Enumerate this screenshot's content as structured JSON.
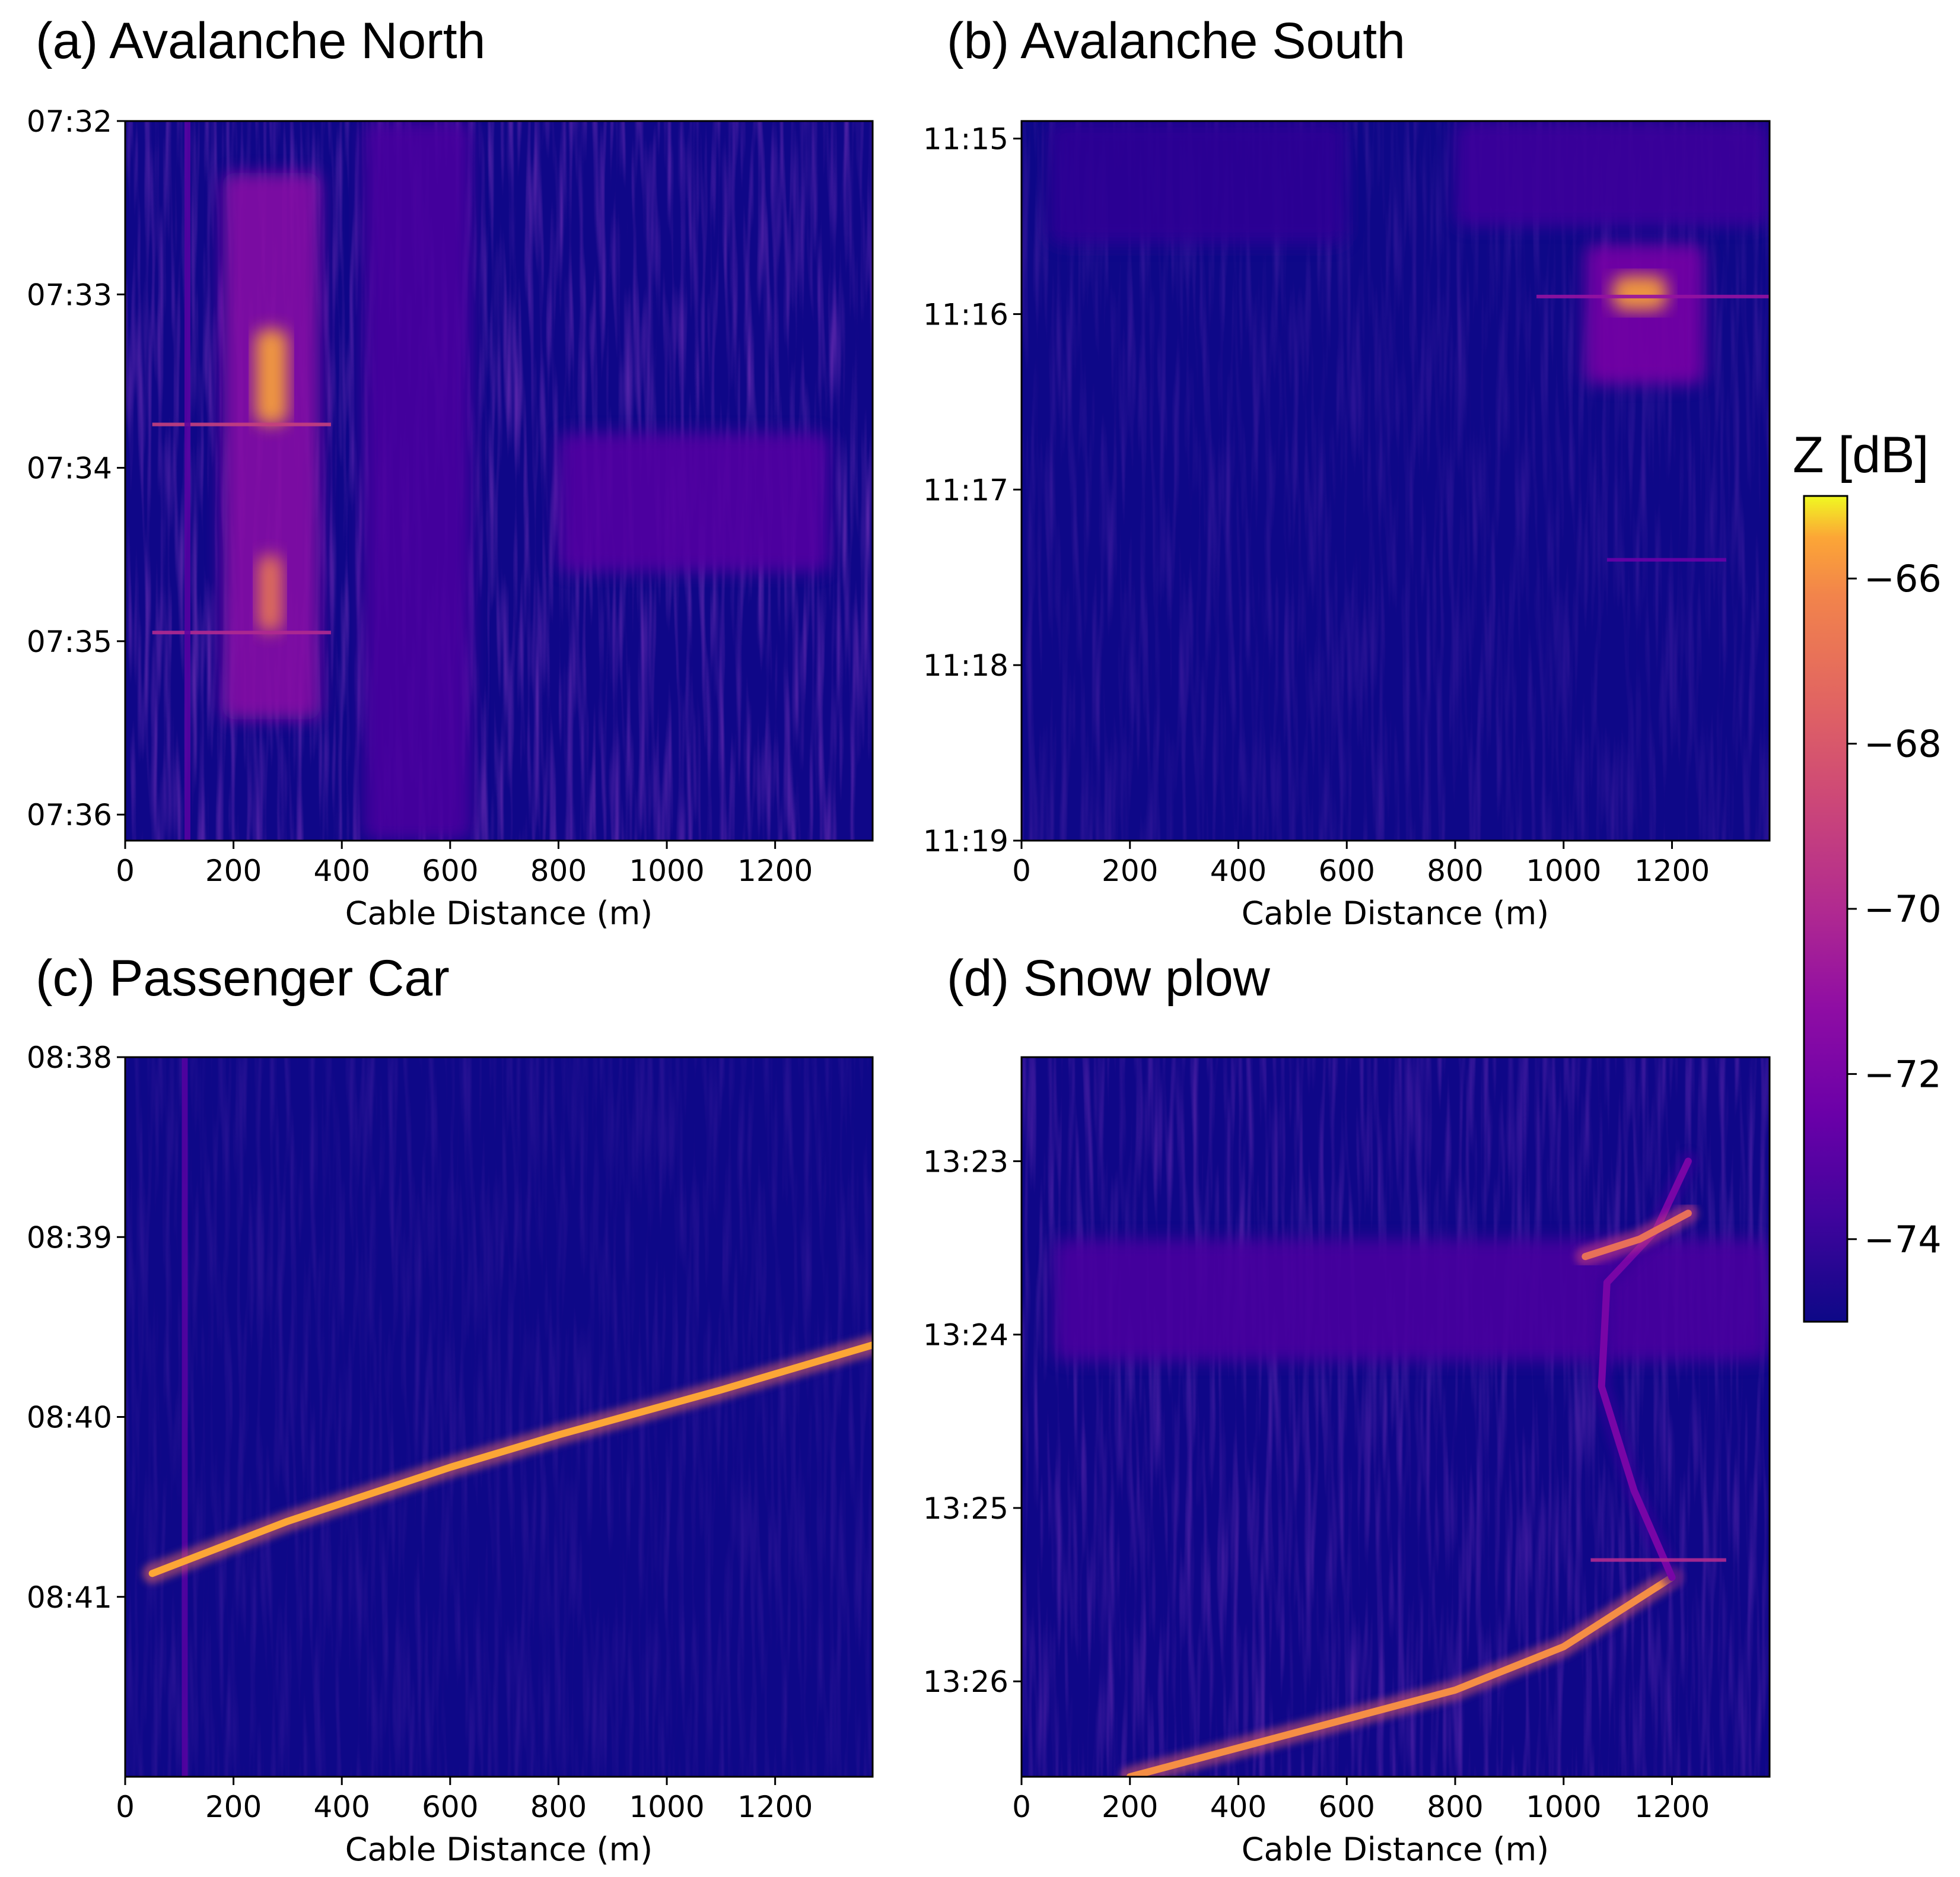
{
  "figure": {
    "colorbar": {
      "label": "Z [dB]",
      "colormap": "plasma",
      "range": [
        -75,
        -65
      ],
      "ticks": [
        -66,
        -68,
        -70,
        -72,
        -74
      ],
      "tick_labels": [
        "−66",
        "−68",
        "−70",
        "−72",
        "−74"
      ]
    }
  },
  "chart_data": [
    {
      "id": "a",
      "type": "heatmap",
      "title": "(a) Avalanche North",
      "xlabel": "Cable Distance (m)",
      "ylabel": "",
      "xlim": [
        0,
        1380
      ],
      "x_ticks": [
        0,
        200,
        400,
        600,
        800,
        1000,
        1200
      ],
      "y_ticks": [
        "07:32",
        "07:33",
        "07:34",
        "07:35",
        "07:36"
      ],
      "y_tick_min": [
        0,
        1,
        2,
        3,
        4
      ],
      "ylim_min": [
        0,
        4.15
      ],
      "background_db": -74.8,
      "features": [
        {
          "kind": "blob",
          "x": [
            180,
            360
          ],
          "y": [
            0.3,
            3.45
          ],
          "db": -71.5
        },
        {
          "kind": "blob",
          "x": [
            240,
            300
          ],
          "y": [
            1.2,
            1.75
          ],
          "db": -65.5
        },
        {
          "kind": "blob",
          "x": [
            245,
            290
          ],
          "y": [
            2.5,
            2.95
          ],
          "db": -66.5
        },
        {
          "kind": "blob",
          "x": [
            440,
            640
          ],
          "y": [
            0,
            4.15
          ],
          "db": -73.5
        },
        {
          "kind": "blob",
          "x": [
            800,
            1300
          ],
          "y": [
            1.8,
            2.6
          ],
          "db": -73.2
        },
        {
          "kind": "line",
          "x": [
            50,
            380
          ],
          "y": 1.75,
          "db": -69
        },
        {
          "kind": "line",
          "x": [
            50,
            380
          ],
          "y": 2.95,
          "db": -70
        },
        {
          "kind": "column",
          "x": 115,
          "db": -73
        }
      ]
    },
    {
      "id": "b",
      "type": "heatmap",
      "title": "(b) Avalanche South",
      "xlabel": "Cable Distance (m)",
      "ylabel": "",
      "xlim": [
        0,
        1380
      ],
      "x_ticks": [
        0,
        200,
        400,
        600,
        800,
        1000,
        1200
      ],
      "y_ticks": [
        "11:15",
        "11:16",
        "11:17",
        "11:18",
        "11:19"
      ],
      "y_tick_min": [
        0,
        1,
        2,
        3,
        4
      ],
      "ylim_min": [
        -0.1,
        4.0
      ],
      "background_db": -74.9,
      "features": [
        {
          "kind": "blob",
          "x": [
            1040,
            1260
          ],
          "y": [
            0.6,
            1.4
          ],
          "db": -72
        },
        {
          "kind": "blob",
          "x": [
            1090,
            1190
          ],
          "y": [
            0.78,
            0.98
          ],
          "db": -65.5
        },
        {
          "kind": "line",
          "x": [
            950,
            1380
          ],
          "y": 0.9,
          "db": -71
        },
        {
          "kind": "line",
          "x": [
            1080,
            1300
          ],
          "y": 2.4,
          "db": -72.5
        },
        {
          "kind": "blob",
          "x": [
            50,
            600
          ],
          "y": [
            -0.1,
            0.6
          ],
          "db": -74.2
        },
        {
          "kind": "blob",
          "x": [
            800,
            1380
          ],
          "y": [
            -0.1,
            0.5
          ],
          "db": -73.8
        }
      ]
    },
    {
      "id": "c",
      "type": "heatmap",
      "title": "(c) Passenger Car",
      "xlabel": "Cable Distance (m)",
      "ylabel": "",
      "xlim": [
        0,
        1380
      ],
      "x_ticks": [
        0,
        200,
        400,
        600,
        800,
        1000,
        1200
      ],
      "y_ticks": [
        "08:38",
        "08:39",
        "08:40",
        "08:41"
      ],
      "y_tick_min": [
        0,
        1,
        2,
        3
      ],
      "ylim_min": [
        0,
        4.0
      ],
      "background_db": -74.9,
      "features": [
        {
          "kind": "column",
          "x": 110,
          "db": -73
        },
        {
          "kind": "track",
          "points": [
            [
              50,
              2.87
            ],
            [
              300,
              2.58
            ],
            [
              600,
              2.28
            ],
            [
              800,
              2.1
            ],
            [
              1100,
              1.85
            ],
            [
              1380,
              1.6
            ]
          ],
          "db": -65.5
        }
      ]
    },
    {
      "id": "d",
      "type": "heatmap",
      "title": "(d) Snow plow",
      "xlabel": "Cable Distance (m)",
      "ylabel": "",
      "xlim": [
        0,
        1380
      ],
      "x_ticks": [
        0,
        200,
        400,
        600,
        800,
        1000,
        1200
      ],
      "y_ticks": [
        "13:23",
        "13:24",
        "13:25",
        "13:26"
      ],
      "y_tick_min": [
        0,
        1,
        2,
        3
      ],
      "ylim_min": [
        -0.6,
        3.55
      ],
      "background_db": -74.8,
      "features": [
        {
          "kind": "blob",
          "x": [
            60,
            1380
          ],
          "y": [
            0.45,
            1.15
          ],
          "db": -73.5
        },
        {
          "kind": "track",
          "points": [
            [
              200,
              3.55
            ],
            [
              500,
              3.3
            ],
            [
              800,
              3.05
            ],
            [
              1000,
              2.8
            ],
            [
              1200,
              2.4
            ]
          ],
          "db": -66
        },
        {
          "kind": "track",
          "points": [
            [
              1200,
              2.4
            ],
            [
              1130,
              1.9
            ],
            [
              1070,
              1.3
            ],
            [
              1080,
              0.7
            ],
            [
              1170,
              0.4
            ],
            [
              1230,
              0
            ]
          ],
          "db": -72
        },
        {
          "kind": "track",
          "points": [
            [
              1040,
              0.55
            ],
            [
              1140,
              0.45
            ],
            [
              1230,
              0.3
            ]
          ],
          "db": -67
        },
        {
          "kind": "line",
          "x": [
            1050,
            1300
          ],
          "y": 2.3,
          "db": -70
        }
      ]
    }
  ]
}
